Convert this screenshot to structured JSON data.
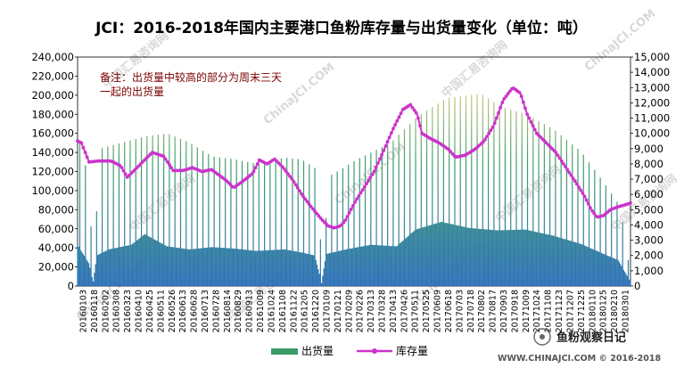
{
  "chart_data": {
    "type": "bar+line",
    "title": "JCI：2016-2018年国内主要港口鱼粉库存量与出货量变化（单位：吨）",
    "note_lines": [
      "备注：出货量中较高的部分为周末三天",
      "一起的出货量"
    ],
    "left_axis": {
      "ylim": [
        0,
        240000
      ],
      "ticks": [
        "0",
        "20,000",
        "40,000",
        "60,000",
        "80,000",
        "100,000",
        "120,000",
        "140,000",
        "160,000",
        "180,000",
        "200,000",
        "220,000",
        "240,000"
      ]
    },
    "right_axis": {
      "ylim": [
        0,
        15000
      ],
      "ticks": [
        "0",
        "1,000",
        "2,000",
        "3,000",
        "4,000",
        "5,000",
        "6,000",
        "7,000",
        "8,000",
        "9,000",
        "10,000",
        "11,000",
        "12,000",
        "13,000",
        "14,000",
        "15,000"
      ]
    },
    "x_tick_labels": [
      "20160103",
      "20160118",
      "20160202",
      "20160308",
      "20160323",
      "20160410",
      "20160425",
      "20160511",
      "20160526",
      "20160613",
      "20160628",
      "20160713",
      "20160728",
      "20160814",
      "20160829",
      "20160913",
      "20161009",
      "20161024",
      "20161108",
      "20161122",
      "20161205",
      "20161220",
      "20170109",
      "20170121",
      "20170209",
      "20170226",
      "20170313",
      "20170328",
      "20170413",
      "20170426",
      "20170511",
      "20170525",
      "20170609",
      "20170618",
      "20170703",
      "20170718",
      "20170802",
      "20170817",
      "20170903",
      "20170918",
      "20171009",
      "20171024",
      "20171108",
      "20171123",
      "20171207",
      "20171225",
      "20180110",
      "20180125",
      "20180210",
      "20180301"
    ],
    "series": [
      {
        "name": "出货量",
        "axis": "right",
        "type": "bar",
        "color": "#3b9b6a",
        "base_keyframes": [
          [
            0,
            2700
          ],
          [
            10,
            1500
          ],
          [
            14,
            300
          ],
          [
            17,
            2000
          ],
          [
            28,
            2400
          ],
          [
            48,
            2700
          ],
          [
            60,
            3400
          ],
          [
            80,
            2600
          ],
          [
            100,
            2400
          ],
          [
            120,
            2550
          ],
          [
            140,
            2450
          ],
          [
            160,
            2300
          ],
          [
            185,
            2400
          ],
          [
            200,
            2200
          ],
          [
            212,
            2000
          ],
          [
            218,
            200
          ],
          [
            222,
            2100
          ],
          [
            240,
            2400
          ],
          [
            262,
            2700
          ],
          [
            285,
            2600
          ],
          [
            302,
            3700
          ],
          [
            325,
            4200
          ],
          [
            350,
            3800
          ],
          [
            375,
            3650
          ],
          [
            400,
            3700
          ],
          [
            425,
            3300
          ],
          [
            450,
            2750
          ],
          [
            470,
            2100
          ],
          [
            483,
            1700
          ],
          [
            490,
            800
          ],
          [
            494,
            300
          ]
        ],
        "spike_keyframes": [
          [
            0,
            10000
          ],
          [
            10,
            7000
          ],
          [
            14,
            800
          ],
          [
            20,
            9000
          ],
          [
            40,
            9400
          ],
          [
            60,
            9800
          ],
          [
            80,
            10000
          ],
          [
            100,
            9400
          ],
          [
            120,
            8500
          ],
          [
            140,
            8300
          ],
          [
            160,
            8000
          ],
          [
            185,
            8400
          ],
          [
            200,
            8300
          ],
          [
            215,
            7600
          ],
          [
            218,
            800
          ],
          [
            225,
            7200
          ],
          [
            250,
            8300
          ],
          [
            280,
            9400
          ],
          [
            305,
            11200
          ],
          [
            330,
            12300
          ],
          [
            360,
            12600
          ],
          [
            380,
            11700
          ],
          [
            400,
            11300
          ],
          [
            425,
            10300
          ],
          [
            450,
            8800
          ],
          [
            470,
            6800
          ],
          [
            485,
            5200
          ],
          [
            494,
            700
          ]
        ]
      },
      {
        "name": "库存量",
        "axis": "left",
        "type": "line",
        "color": "#cc33cc",
        "keyframes": [
          [
            0,
            152000
          ],
          [
            4,
            150000
          ],
          [
            12,
            130000
          ],
          [
            22,
            131000
          ],
          [
            35,
            131000
          ],
          [
            45,
            126000
          ],
          [
            52,
            114000
          ],
          [
            62,
            124000
          ],
          [
            78,
            140000
          ],
          [
            90,
            136000
          ],
          [
            100,
            121000
          ],
          [
            110,
            121000
          ],
          [
            120,
            124000
          ],
          [
            130,
            120000
          ],
          [
            140,
            122000
          ],
          [
            155,
            111000
          ],
          [
            163,
            103000
          ],
          [
            173,
            110000
          ],
          [
            183,
            118000
          ],
          [
            190,
            132000
          ],
          [
            198,
            128000
          ],
          [
            206,
            133000
          ],
          [
            215,
            124000
          ],
          [
            225,
            111000
          ],
          [
            235,
            95000
          ],
          [
            245,
            82000
          ],
          [
            255,
            70000
          ],
          [
            262,
            63000
          ],
          [
            268,
            61000
          ],
          [
            275,
            63000
          ],
          [
            280,
            69000
          ],
          [
            290,
            88000
          ],
          [
            300,
            104000
          ],
          [
            310,
            120000
          ],
          [
            320,
            142000
          ],
          [
            330,
            165000
          ],
          [
            340,
            185000
          ],
          [
            348,
            190000
          ],
          [
            355,
            180000
          ],
          [
            360,
            160000
          ],
          [
            368,
            155000
          ],
          [
            378,
            150000
          ],
          [
            388,
            143000
          ],
          [
            395,
            135000
          ],
          [
            405,
            137000
          ],
          [
            415,
            143000
          ],
          [
            425,
            152000
          ],
          [
            435,
            168000
          ],
          [
            445,
            195000
          ],
          [
            455,
            208000
          ],
          [
            463,
            202000
          ],
          [
            470,
            180000
          ],
          [
            480,
            160000
          ],
          [
            490,
            150000
          ],
          [
            500,
            140000
          ],
          [
            510,
            125000
          ],
          [
            520,
            110000
          ],
          [
            530,
            94000
          ],
          [
            537,
            80000
          ],
          [
            543,
            72000
          ],
          [
            550,
            74000
          ],
          [
            557,
            80000
          ],
          [
            565,
            83000
          ],
          [
            572,
            85000
          ],
          [
            578,
            87000
          ]
        ]
      }
    ],
    "watermarks": [
      "中国汇易咨询网",
      "ChinaJCI.COM"
    ],
    "footer": "WWW.CHINAJCI.COM © 2016-2018",
    "brand": "鱼粉观察日记"
  }
}
